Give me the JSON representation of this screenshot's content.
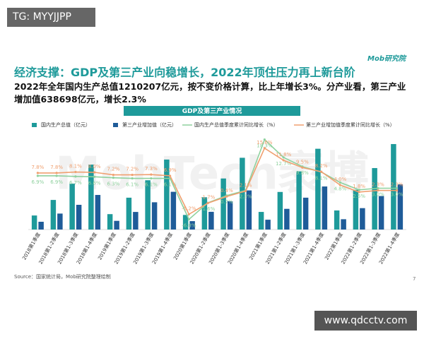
{
  "tag": "TG: MYYJJPP",
  "logo": "Mob研究院",
  "headline": "经济支撑：GDP及第三产业向稳增长，2022年顶住压力再上新台阶",
  "summary": "2022年全年国内生产总值1210207亿元，按不变价格计算，比上年增长3%。分产业看，第三产业增加值638698亿元，增长2.3%",
  "watermark": "MobTech袤博",
  "source": "Source：国家统计局，Mob研究院整理绘制",
  "page_number": "7",
  "site": "www.qdcctv.com",
  "chart_data": {
    "type": "bar",
    "title": "GDP及第三产业情况",
    "categories": [
      "2018第1季度",
      "2018第1-2季度",
      "2018第1-3季度",
      "2018第1-4季度",
      "2019第1季度",
      "2019第1-2季度",
      "2019第1-3季度",
      "2019第1-4季度",
      "2020第1季度",
      "2020第1-2季度",
      "2020第1-3季度",
      "2020第1-4季度",
      "2021第1季度",
      "2021第1-2季度",
      "2021第1-3季度",
      "2021第1-4季度",
      "2022第1季度",
      "2022第1-2季度",
      "2022第1-3季度",
      "2022第1-4季度"
    ],
    "ylim": [
      0,
      1350000
    ],
    "y2lim": [
      -10,
      20
    ],
    "series": [
      {
        "name": "国内生产总值（亿元）",
        "type": "bar",
        "color": "#1e9a9a",
        "values": [
          198783,
          418961,
          650899,
          919281,
          218063,
          450933,
          697798,
          990865,
          206504,
          456614,
          722786,
          1015986,
          249310,
          532167,
          823131,
          1143670,
          270178,
          562642,
          870269,
          1210207
        ]
      },
      {
        "name": "第三产业增加值（亿元）",
        "type": "bar",
        "color": "#1f5c99",
        "values": [
          110000,
          226000,
          350000,
          489700,
          123000,
          249000,
          386000,
          534200,
          119000,
          251000,
          400000,
          553977,
          139000,
          293000,
          451000,
          609680,
          146000,
          303000,
          474000,
          638698
        ]
      },
      {
        "name": "国内生产总值季度累计同比增长（%）",
        "type": "line",
        "axis": "y2",
        "color": "#8fd19e",
        "values": [
          6.9,
          6.9,
          6.7,
          6.6,
          6.3,
          6.1,
          6.1,
          6.1,
          -6.8,
          -1.6,
          0.7,
          2.3,
          18.3,
          12.7,
          9.8,
          8.1,
          4.8,
          2.5,
          3.0,
          3.0
        ],
        "value_labels": [
          "6.9%",
          "6.9%",
          "6.7%",
          "6.6%",
          "6.3%",
          "6.1%",
          "6.1%",
          "6.1%",
          "-6.8%",
          "-1.6%",
          "0.7%",
          "2.3%",
          "18.3%",
          "12.7%",
          "9.8%",
          "8.1%",
          "4.8%",
          "2.5%",
          "3.0%",
          "3.0%"
        ]
      },
      {
        "name": "第三产业增加值季度累计同比增长（%）",
        "type": "line",
        "axis": "y2",
        "color": "#f0a070",
        "values": [
          7.8,
          7.8,
          8.1,
          8.0,
          7.2,
          7.2,
          7.3,
          6.9,
          -5.2,
          -1.7,
          0.4,
          2.1,
          15.6,
          11.8,
          9.5,
          8.2,
          4.0,
          1.8,
          2.3,
          2.3
        ],
        "value_labels": [
          "7.8%",
          "7.8%",
          "8.1%",
          "8.0%",
          "7.2%",
          "7.2%",
          "7.3%",
          "6.9%",
          "-5.2%",
          "-1.7%",
          "0.4%",
          "2.1%",
          "15.6%",
          "11.8%",
          "9.5%",
          "8.2%",
          "4.0%",
          "1.8%",
          "2.3%",
          "2.3%"
        ]
      }
    ]
  }
}
